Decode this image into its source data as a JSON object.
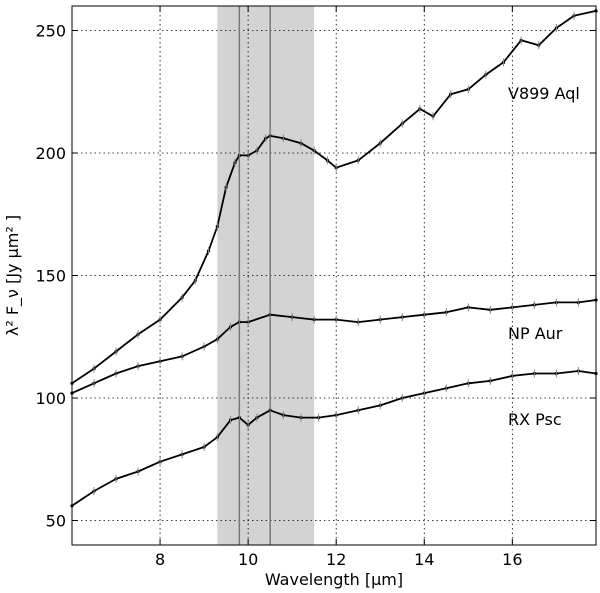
{
  "chart_data": {
    "type": "line",
    "xlabel": "Wavelength [μm]",
    "ylabel": "λ² F_ν [Jy μm² ]",
    "xlim": [
      6.0,
      17.9
    ],
    "ylim": [
      40,
      260
    ],
    "xticks": [
      8,
      10,
      12,
      14,
      16
    ],
    "yticks": [
      50,
      100,
      150,
      200,
      250
    ],
    "grid": true,
    "shaded_band": {
      "x_start": 9.3,
      "x_end": 11.5
    },
    "vertical_lines": [
      9.8,
      10.5
    ],
    "series": [
      {
        "name": "V899 Aql",
        "x": [
          6.0,
          6.5,
          7.0,
          7.5,
          8.0,
          8.5,
          8.8,
          9.1,
          9.3,
          9.5,
          9.7,
          9.8,
          10.0,
          10.2,
          10.4,
          10.5,
          10.8,
          11.2,
          11.5,
          11.8,
          12.0,
          12.5,
          13.0,
          13.5,
          13.9,
          14.2,
          14.6,
          15.0,
          15.4,
          15.8,
          16.2,
          16.6,
          17.0,
          17.4,
          17.9
        ],
        "y": [
          106,
          112,
          119,
          126,
          132,
          141,
          148,
          160,
          170,
          186,
          196,
          199,
          199,
          201,
          206,
          207,
          206,
          204,
          201,
          197,
          194,
          197,
          204,
          212,
          218,
          215,
          224,
          226,
          232,
          237,
          246,
          244,
          251,
          256,
          258
        ]
      },
      {
        "name": "NP Aur",
        "x": [
          6.0,
          6.5,
          7.0,
          7.5,
          8.0,
          8.5,
          9.0,
          9.3,
          9.6,
          9.8,
          10.0,
          10.5,
          11.0,
          11.5,
          12.0,
          12.5,
          13.0,
          13.5,
          14.0,
          14.5,
          15.0,
          15.5,
          16.0,
          16.5,
          17.0,
          17.5,
          17.9
        ],
        "y": [
          102,
          106,
          110,
          113,
          115,
          117,
          121,
          124,
          129,
          131,
          131,
          134,
          133,
          132,
          132,
          131,
          132,
          133,
          134,
          135,
          137,
          136,
          137,
          138,
          139,
          139,
          140
        ]
      },
      {
        "name": "RX Psc",
        "x": [
          6.0,
          6.5,
          7.0,
          7.5,
          8.0,
          8.5,
          9.0,
          9.3,
          9.6,
          9.8,
          10.0,
          10.2,
          10.5,
          10.8,
          11.2,
          11.6,
          12.0,
          12.5,
          13.0,
          13.5,
          14.0,
          14.5,
          15.0,
          15.5,
          16.0,
          16.5,
          17.0,
          17.5,
          17.9
        ],
        "y": [
          56,
          62,
          67,
          70,
          74,
          77,
          80,
          84,
          91,
          92,
          89,
          92,
          95,
          93,
          92,
          92,
          93,
          95,
          97,
          100,
          102,
          104,
          106,
          107,
          109,
          110,
          110,
          111,
          110
        ]
      }
    ]
  }
}
